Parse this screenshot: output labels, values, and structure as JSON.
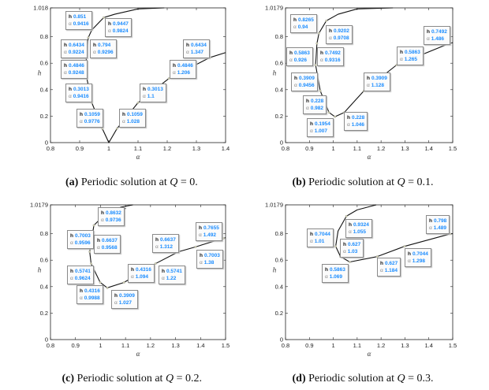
{
  "chart_data": [
    {
      "type": "line",
      "xlabel": "α",
      "ylabel": "h",
      "xlim": [
        0.8,
        1.4
      ],
      "ylim": [
        0,
        1.018
      ],
      "xticks": [
        "0.8",
        "0.9",
        "1",
        "1.1",
        "1.2",
        "1.3",
        "1.4"
      ],
      "xtick_values": [
        0.8,
        0.9,
        1,
        1.1,
        1.2,
        1.3,
        1.4
      ],
      "yticks": [
        "0",
        "0.2",
        "0.4",
        "0.6",
        "0.8",
        "1.018"
      ],
      "ytick_values": [
        0,
        0.2,
        0.4,
        0.6,
        0.8,
        1.018
      ],
      "curves": [
        [
          [
            1.19,
            1.018
          ],
          [
            1.1,
            1.01
          ],
          [
            1.02,
            0.97
          ],
          [
            0.9824,
            0.9447
          ],
          [
            0.9416,
            0.851
          ],
          [
            0.9296,
            0.794
          ],
          [
            0.9224,
            0.6434
          ],
          [
            0.9248,
            0.4846
          ],
          [
            0.9416,
            0.3013
          ],
          [
            0.9776,
            0.1059
          ],
          [
            1.0,
            0.0
          ],
          [
            1.028,
            0.1059
          ],
          [
            1.1,
            0.3013
          ],
          [
            1.206,
            0.4846
          ],
          [
            1.347,
            0.6434
          ],
          [
            1.4,
            0.68
          ]
        ]
      ],
      "datatips": [
        {
          "h": "0.851",
          "alpha": "0.9416"
        },
        {
          "h": "0.9447",
          "alpha": "0.9824"
        },
        {
          "h": "0.6434",
          "alpha": "0.9224"
        },
        {
          "h": "0.794",
          "alpha": "0.9296"
        },
        {
          "h": "0.4846",
          "alpha": "0.9248"
        },
        {
          "h": "0.6434",
          "alpha": "1.347"
        },
        {
          "h": "0.4846",
          "alpha": "1.206"
        },
        {
          "h": "0.3013",
          "alpha": "0.9416"
        },
        {
          "h": "0.3013",
          "alpha": "1.1"
        },
        {
          "h": "0.1059",
          "alpha": "0.9776"
        },
        {
          "h": "0.1059",
          "alpha": "1.028"
        }
      ],
      "caption": {
        "label": "(a)",
        "text": "Periodic solution at",
        "var": "Q",
        "value": "= 0."
      }
    },
    {
      "type": "line",
      "xlabel": "α",
      "ylabel": "h",
      "xlim": [
        0.8,
        1.5
      ],
      "ylim": [
        0,
        1.0179
      ],
      "xticks": [
        "0.8",
        "0.9",
        "1",
        "1.1",
        "1.2",
        "1.3",
        "1.4",
        "1.5"
      ],
      "xtick_values": [
        0.8,
        0.9,
        1,
        1.1,
        1.2,
        1.3,
        1.4,
        1.5
      ],
      "yticks": [
        "0",
        "0.2",
        "0.4",
        "0.6",
        "0.8",
        "1.0179"
      ],
      "ytick_values": [
        0,
        0.2,
        0.4,
        0.6,
        0.8,
        1.0179
      ],
      "curves": [
        [
          [
            1.25,
            1.0179
          ],
          [
            1.1,
            1.01
          ],
          [
            1.02,
            0.97
          ],
          [
            0.9708,
            0.9202
          ],
          [
            0.94,
            0.8265
          ],
          [
            0.9316,
            0.7492
          ],
          [
            0.926,
            0.5863
          ],
          [
            0.9456,
            0.3909
          ],
          [
            0.982,
            0.228
          ],
          [
            1.007,
            0.1954
          ],
          [
            1.046,
            0.228
          ],
          [
            1.128,
            0.3909
          ],
          [
            1.265,
            0.5863
          ],
          [
            1.486,
            0.7492
          ],
          [
            1.5,
            0.755
          ]
        ]
      ],
      "datatips": [
        {
          "h": "0.8265",
          "alpha": "0.94"
        },
        {
          "h": "0.9202",
          "alpha": "0.9708"
        },
        {
          "h": "0.5863",
          "alpha": "0.926"
        },
        {
          "h": "0.7492",
          "alpha": "0.9316"
        },
        {
          "h": "0.3909",
          "alpha": "0.9456"
        },
        {
          "h": "0.228",
          "alpha": "0.982"
        },
        {
          "h": "0.1954",
          "alpha": "1.007"
        },
        {
          "h": "0.228",
          "alpha": "1.046"
        },
        {
          "h": "0.3909",
          "alpha": "1.128"
        },
        {
          "h": "0.5863",
          "alpha": "1.265"
        },
        {
          "h": "0.7492",
          "alpha": "1.486"
        }
      ],
      "caption": {
        "label": "(b)",
        "text": "Periodic solution at",
        "var": "Q",
        "value": "= 0.1."
      }
    },
    {
      "type": "line",
      "xlabel": "α",
      "ylabel": "h",
      "xlim": [
        0.8,
        1.5
      ],
      "ylim": [
        0,
        1.0179
      ],
      "xticks": [
        "0.8",
        "0.9",
        "1",
        "1.1",
        "1.2",
        "1.3",
        "1.4",
        "1.5"
      ],
      "xtick_values": [
        0.8,
        0.9,
        1,
        1.1,
        1.2,
        1.3,
        1.4,
        1.5
      ],
      "yticks": [
        "0",
        "0.2",
        "0.4",
        "0.6",
        "0.8",
        "1.0179"
      ],
      "ytick_values": [
        0,
        0.2,
        0.4,
        0.6,
        0.8,
        1.0179
      ],
      "curves": [
        [
          [
            1.13,
            1.0179
          ],
          [
            1.08,
            1.0
          ],
          [
            1.1,
            0.99
          ],
          [
            1.02,
            0.95
          ],
          [
            0.9736,
            0.8632
          ],
          [
            0.9596,
            0.7003
          ],
          [
            0.9568,
            0.6637
          ],
          [
            0.9624,
            0.5741
          ],
          [
            0.9988,
            0.4316
          ],
          [
            1.027,
            0.3909
          ],
          [
            1.094,
            0.4316
          ],
          [
            1.22,
            0.5741
          ],
          [
            1.312,
            0.6637
          ],
          [
            1.38,
            0.7003
          ],
          [
            1.492,
            0.7655
          ],
          [
            1.5,
            0.77
          ]
        ]
      ],
      "datatips": [
        {
          "h": "0.8632",
          "alpha": "0.9736"
        },
        {
          "h": "0.7003",
          "alpha": "0.9596"
        },
        {
          "h": "0.6637",
          "alpha": "0.9568"
        },
        {
          "h": "0.5741",
          "alpha": "0.9624"
        },
        {
          "h": "0.4316",
          "alpha": "0.9988"
        },
        {
          "h": "0.3909",
          "alpha": "1.027"
        },
        {
          "h": "0.4316",
          "alpha": "1.094"
        },
        {
          "h": "0.6637",
          "alpha": "1.312"
        },
        {
          "h": "0.5741",
          "alpha": "1.22"
        },
        {
          "h": "0.7655",
          "alpha": "1.492"
        },
        {
          "h": "0.7003",
          "alpha": "1.38"
        }
      ],
      "caption": {
        "label": "(c)",
        "text": "Periodic solution at",
        "var": "Q",
        "value": "= 0.2."
      }
    },
    {
      "type": "line",
      "xlabel": "α",
      "ylabel": "h",
      "xlim": [
        0.8,
        1.5
      ],
      "ylim": [
        0,
        1.0179
      ],
      "xticks": [
        "0.8",
        "0.9",
        "1",
        "1.1",
        "1.2",
        "1.3",
        "1.4",
        "1.5"
      ],
      "xtick_values": [
        0.8,
        0.9,
        1,
        1.1,
        1.2,
        1.3,
        1.4,
        1.5
      ],
      "yticks": [
        "0",
        "0.2",
        "0.4",
        "0.6",
        "0.8",
        "1.0179"
      ],
      "ytick_values": [
        0,
        0.2,
        0.4,
        0.6,
        0.8,
        1.0179
      ],
      "curves": [
        [
          [
            1.18,
            1.0179
          ],
          [
            1.1,
            0.98
          ],
          [
            1.055,
            0.9324
          ],
          [
            1.02,
            0.82
          ],
          [
            1.01,
            0.7044
          ],
          [
            1.03,
            0.627
          ],
          [
            1.069,
            0.5863
          ],
          [
            1.184,
            0.627
          ],
          [
            1.298,
            0.7044
          ],
          [
            1.489,
            0.798
          ],
          [
            1.5,
            0.8
          ]
        ]
      ],
      "datatips": [
        {
          "h": "0.9324",
          "alpha": "1.055"
        },
        {
          "h": "0.7044",
          "alpha": "1.01"
        },
        {
          "h": "0.627",
          "alpha": "1.03"
        },
        {
          "h": "0.5863",
          "alpha": "1.069"
        },
        {
          "h": "0.627",
          "alpha": "1.184"
        },
        {
          "h": "0.7044",
          "alpha": "1.298"
        },
        {
          "h": "0.798",
          "alpha": "1.489"
        }
      ],
      "caption": {
        "label": "(d)",
        "text": "Periodic solution at",
        "var": "Q",
        "value": "= 0.3."
      }
    }
  ]
}
